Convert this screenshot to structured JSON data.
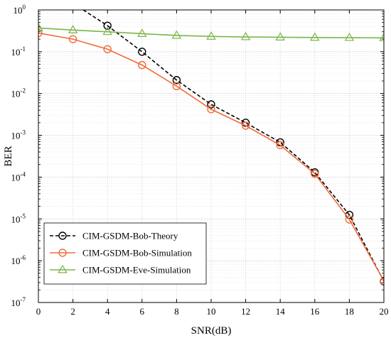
{
  "chart_data": {
    "type": "line",
    "xlabel": "SNR(dB)",
    "ylabel": "BER",
    "xlim": [
      0,
      20
    ],
    "ylim": [
      1e-07,
      1
    ],
    "yscale": "log",
    "grid": true,
    "legend_position": "bottom-left",
    "x_ticks": [
      0,
      2,
      4,
      6,
      8,
      10,
      12,
      14,
      16,
      18,
      20
    ],
    "x_tick_labels": [
      "0",
      "2",
      "4",
      "6",
      "8",
      "10",
      "12",
      "14",
      "16",
      "18",
      "20"
    ],
    "y_ticks": [
      {
        "base": "10",
        "exp": "-7",
        "value": 1e-07
      },
      {
        "base": "10",
        "exp": "-6",
        "value": 1e-06
      },
      {
        "base": "10",
        "exp": "-5",
        "value": 1e-05
      },
      {
        "base": "10",
        "exp": "-4",
        "value": 0.0001
      },
      {
        "base": "10",
        "exp": "-3",
        "value": 0.001
      },
      {
        "base": "10",
        "exp": "-2",
        "value": 0.01
      },
      {
        "base": "10",
        "exp": "-1",
        "value": 0.1
      },
      {
        "base": "10",
        "exp": "0",
        "value": 1
      }
    ],
    "series": [
      {
        "name": "CIM-GSDM-Bob-Theory",
        "color": "#000000",
        "line_style": "dashed",
        "marker": "circle",
        "curve_x": [
          2.6,
          4,
          6,
          8,
          10,
          12,
          14,
          16,
          18,
          20
        ],
        "curve_y": [
          1.0,
          0.42,
          0.1,
          0.021,
          0.0055,
          0.002,
          0.00068,
          0.00013,
          1.25e-05,
          3.2e-07
        ],
        "marker_x": [
          4,
          6,
          8,
          10,
          12,
          14,
          16,
          18,
          20
        ],
        "marker_y": [
          0.42,
          0.1,
          0.021,
          0.0055,
          0.002,
          0.00068,
          0.00013,
          1.25e-05,
          3.2e-07
        ]
      },
      {
        "name": "CIM-GSDM-Bob-Simulation",
        "color": "#f26b3a",
        "line_style": "solid",
        "marker": "circle",
        "curve_x": [
          0,
          2,
          4,
          6,
          8,
          10,
          12,
          14,
          16,
          18,
          20
        ],
        "curve_y": [
          0.28,
          0.2,
          0.115,
          0.048,
          0.015,
          0.0042,
          0.0017,
          0.00058,
          0.00012,
          9.7e-06,
          3.3e-07
        ],
        "marker_x": [
          0,
          2,
          4,
          6,
          8,
          10,
          12,
          14,
          16,
          18,
          20
        ],
        "marker_y": [
          0.28,
          0.2,
          0.115,
          0.048,
          0.015,
          0.0042,
          0.0017,
          0.00058,
          0.00012,
          9.7e-06,
          3.3e-07
        ]
      },
      {
        "name": "CIM-GSDM-Eve-Simulation",
        "color": "#7ab648",
        "line_style": "solid",
        "marker": "triangle",
        "curve_x": [
          0,
          2,
          4,
          6,
          8,
          10,
          12,
          14,
          16,
          18,
          20
        ],
        "curve_y": [
          0.37,
          0.33,
          0.3,
          0.27,
          0.245,
          0.232,
          0.226,
          0.222,
          0.219,
          0.217,
          0.215
        ],
        "marker_x": [
          0,
          2,
          4,
          6,
          8,
          10,
          12,
          14,
          16,
          18,
          20
        ],
        "marker_y": [
          0.37,
          0.33,
          0.3,
          0.27,
          0.245,
          0.232,
          0.226,
          0.222,
          0.219,
          0.217,
          0.215
        ]
      }
    ]
  }
}
